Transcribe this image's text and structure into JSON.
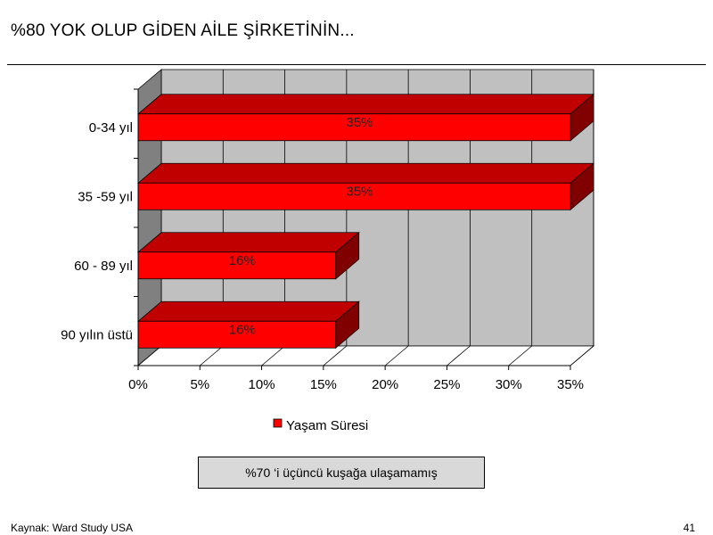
{
  "slide": {
    "title": "%80 YOK OLUP GİDEN AİLE ŞİRKETİNİN...",
    "callout": "%70 ‘i üçüncü kuşağa ulaşamamış",
    "source": "Kaynak: Ward Study USA",
    "page_number": "41"
  },
  "chart_data": {
    "type": "bar",
    "orientation": "horizontal",
    "three_d": true,
    "categories": [
      "0-34 yıl",
      "35 -59 yıl",
      "60 - 89 yıl",
      "90 yılın üstü"
    ],
    "series": [
      {
        "name": "Yaşam Süresi",
        "values": [
          35,
          35,
          16,
          16
        ],
        "labels": [
          "35%",
          "35%",
          "16%",
          "16%"
        ]
      }
    ],
    "xlim": [
      0,
      35
    ],
    "x_ticks": [
      0,
      5,
      10,
      15,
      20,
      25,
      30,
      35
    ],
    "x_tick_labels": [
      "0%",
      "5%",
      "10%",
      "15%",
      "20%",
      "25%",
      "30%",
      "35%"
    ],
    "grid": true,
    "legend_position": "bottom",
    "colors": {
      "bar_front": "#ff0000",
      "bar_top": "#c00000",
      "bar_side": "#800000",
      "back_wall": "#c0c0c0",
      "side_wall": "#808080",
      "floor": "#ffffff"
    }
  }
}
